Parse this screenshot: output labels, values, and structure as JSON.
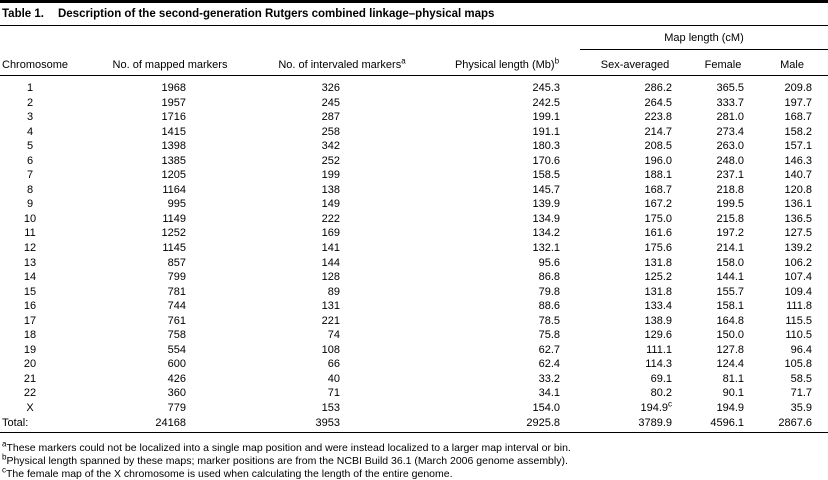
{
  "title": {
    "label": "Table 1.",
    "text": "Description of the second-generation Rutgers combined linkage–physical maps"
  },
  "table": {
    "spanner_label": "Map length (cM)",
    "columns": [
      {
        "key": "chromosome",
        "label": "Chromosome"
      },
      {
        "key": "mapped-markers",
        "label": "No. of mapped markers"
      },
      {
        "key": "intervaled-markers",
        "label": "No. of intervaled markers^a"
      },
      {
        "key": "physical-length",
        "label": "Physical length (Mb)^b"
      },
      {
        "key": "sex-averaged",
        "label": "Sex-averaged"
      },
      {
        "key": "female",
        "label": "Female"
      },
      {
        "key": "male",
        "label": "Male"
      }
    ],
    "rows": [
      [
        "1",
        "1968",
        "326",
        "245.3",
        "286.2",
        "365.5",
        "209.8"
      ],
      [
        "2",
        "1957",
        "245",
        "242.5",
        "264.5",
        "333.7",
        "197.7"
      ],
      [
        "3",
        "1716",
        "287",
        "199.1",
        "223.8",
        "281.0",
        "168.7"
      ],
      [
        "4",
        "1415",
        "258",
        "191.1",
        "214.7",
        "273.4",
        "158.2"
      ],
      [
        "5",
        "1398",
        "342",
        "180.3",
        "208.5",
        "263.0",
        "157.1"
      ],
      [
        "6",
        "1385",
        "252",
        "170.6",
        "196.0",
        "248.0",
        "146.3"
      ],
      [
        "7",
        "1205",
        "199",
        "158.5",
        "188.1",
        "237.1",
        "140.7"
      ],
      [
        "8",
        "1164",
        "138",
        "145.7",
        "168.7",
        "218.8",
        "120.8"
      ],
      [
        "9",
        "995",
        "149",
        "139.9",
        "167.2",
        "199.5",
        "136.1"
      ],
      [
        "10",
        "1149",
        "222",
        "134.9",
        "175.0",
        "215.8",
        "136.5"
      ],
      [
        "11",
        "1252",
        "169",
        "134.2",
        "161.6",
        "197.2",
        "127.5"
      ],
      [
        "12",
        "1145",
        "141",
        "132.1",
        "175.6",
        "214.1",
        "139.2"
      ],
      [
        "13",
        "857",
        "144",
        "95.6",
        "131.8",
        "158.0",
        "106.2"
      ],
      [
        "14",
        "799",
        "128",
        "86.8",
        "125.2",
        "144.1",
        "107.4"
      ],
      [
        "15",
        "781",
        "89",
        "79.8",
        "131.8",
        "155.7",
        "109.4"
      ],
      [
        "16",
        "744",
        "131",
        "88.6",
        "133.4",
        "158.1",
        "111.8"
      ],
      [
        "17",
        "761",
        "221",
        "78.5",
        "138.9",
        "164.8",
        "115.5"
      ],
      [
        "18",
        "758",
        "74",
        "75.8",
        "129.6",
        "150.0",
        "110.5"
      ],
      [
        "19",
        "554",
        "108",
        "62.7",
        "111.1",
        "127.8",
        "96.4"
      ],
      [
        "20",
        "600",
        "66",
        "62.4",
        "114.3",
        "124.4",
        "105.8"
      ],
      [
        "21",
        "426",
        "40",
        "33.2",
        "69.1",
        "81.1",
        "58.5"
      ],
      [
        "22",
        "360",
        "71",
        "34.1",
        "80.2",
        "90.1",
        "71.7"
      ],
      [
        "X",
        "779",
        "153",
        "154.0",
        "194.9^c",
        "194.9",
        "35.9"
      ],
      [
        "Total:",
        "24168",
        "3953",
        "2925.8",
        "3789.9",
        "4596.1",
        "2867.6"
      ]
    ]
  },
  "footnotes": [
    {
      "sup": "a",
      "text": "These markers could not be localized into a single map position and were instead localized to a larger map interval or bin."
    },
    {
      "sup": "b",
      "text": "Physical length spanned by these maps; marker positions are from the NCBI Build 36.1 (March 2006 genome assembly)."
    },
    {
      "sup": "c",
      "text": "The female map of the X chromosome is used when calculating the length of the entire genome."
    }
  ]
}
